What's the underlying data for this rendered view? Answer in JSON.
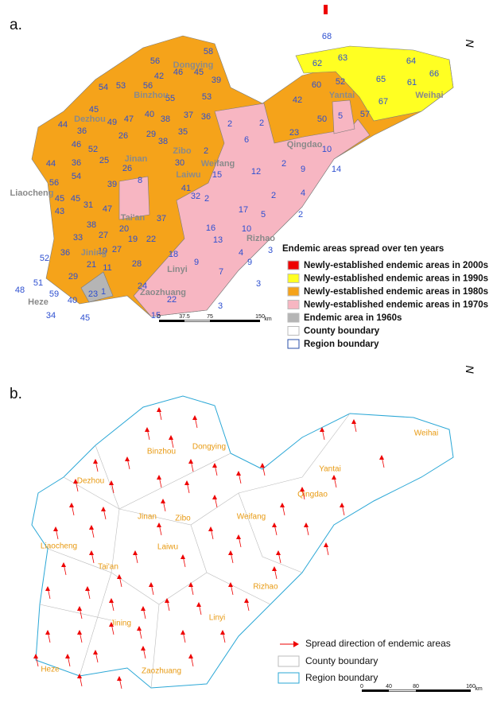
{
  "panel_a": {
    "label": "a.",
    "north": "N",
    "county_numbers": [
      "56",
      "58",
      "42",
      "46",
      "45",
      "39",
      "54",
      "53",
      "56",
      "55",
      "53",
      "45",
      "49",
      "47",
      "40",
      "38",
      "37",
      "36",
      "44",
      "36",
      "26",
      "29",
      "35",
      "46",
      "52",
      "38",
      "44",
      "54",
      "25",
      "26",
      "30",
      "56",
      "36",
      "39",
      "41",
      "45",
      "43",
      "45",
      "31",
      "47",
      "37",
      "32",
      "38",
      "33",
      "20",
      "19",
      "22",
      "27",
      "52",
      "36",
      "19",
      "27",
      "21",
      "28",
      "18",
      "29",
      "51",
      "59",
      "40",
      "48",
      "23",
      "34",
      "45",
      "24",
      "22",
      "60",
      "52",
      "42",
      "23",
      "50",
      "57",
      "1",
      "11",
      "8",
      "15",
      "2",
      "2",
      "6",
      "2",
      "15",
      "12",
      "2",
      "2",
      "10",
      "9",
      "14",
      "4",
      "2",
      "17",
      "5",
      "2",
      "16",
      "13",
      "10",
      "9",
      "4",
      "3",
      "9",
      "7",
      "3",
      "3",
      "5",
      "62",
      "63",
      "64",
      "66",
      "65",
      "61",
      "67",
      "68"
    ],
    "regions": [
      "Dongying",
      "Binzhou",
      "Dezhou",
      "Jinan",
      "Zibo",
      "Weifang",
      "Laiwu",
      "Liaocheng",
      "Tai'an",
      "Linyi",
      "Rizhao",
      "Jining",
      "Zaozhuang",
      "Heze",
      "Yantai",
      "Weihai",
      "Qingdao"
    ],
    "legend": {
      "title": "Endemic areas spread over ten years",
      "items": [
        "Newly-established endemic areas in 2000s",
        "Newly-established endemic areas in 1990s",
        "Newly-established endemic areas in 1980s",
        "Newly-established endemic areas in 1970s",
        "Endemic area in 1960s",
        "County boundary",
        "Region boundary"
      ]
    },
    "scale": [
      "0",
      "37.5",
      "75",
      "150"
    ],
    "scale_unit": "km"
  },
  "panel_b": {
    "label": "b.",
    "north": "N",
    "regions": [
      "Dongying",
      "Binzhou",
      "Yantai",
      "Weihai",
      "Dezhou",
      "Qingdao",
      "Jinan",
      "Zibo",
      "Weifang",
      "Liaocheng",
      "Laiwu",
      "Tai'an",
      "Rizhao",
      "Jining",
      "Linyi",
      "Heze",
      "Zaozhuang"
    ],
    "legend": [
      "Spread direction of endemic areas",
      "County boundary",
      "Region boundary"
    ],
    "scale": [
      "0",
      "40",
      "80",
      "160"
    ],
    "scale_unit": "km"
  }
}
